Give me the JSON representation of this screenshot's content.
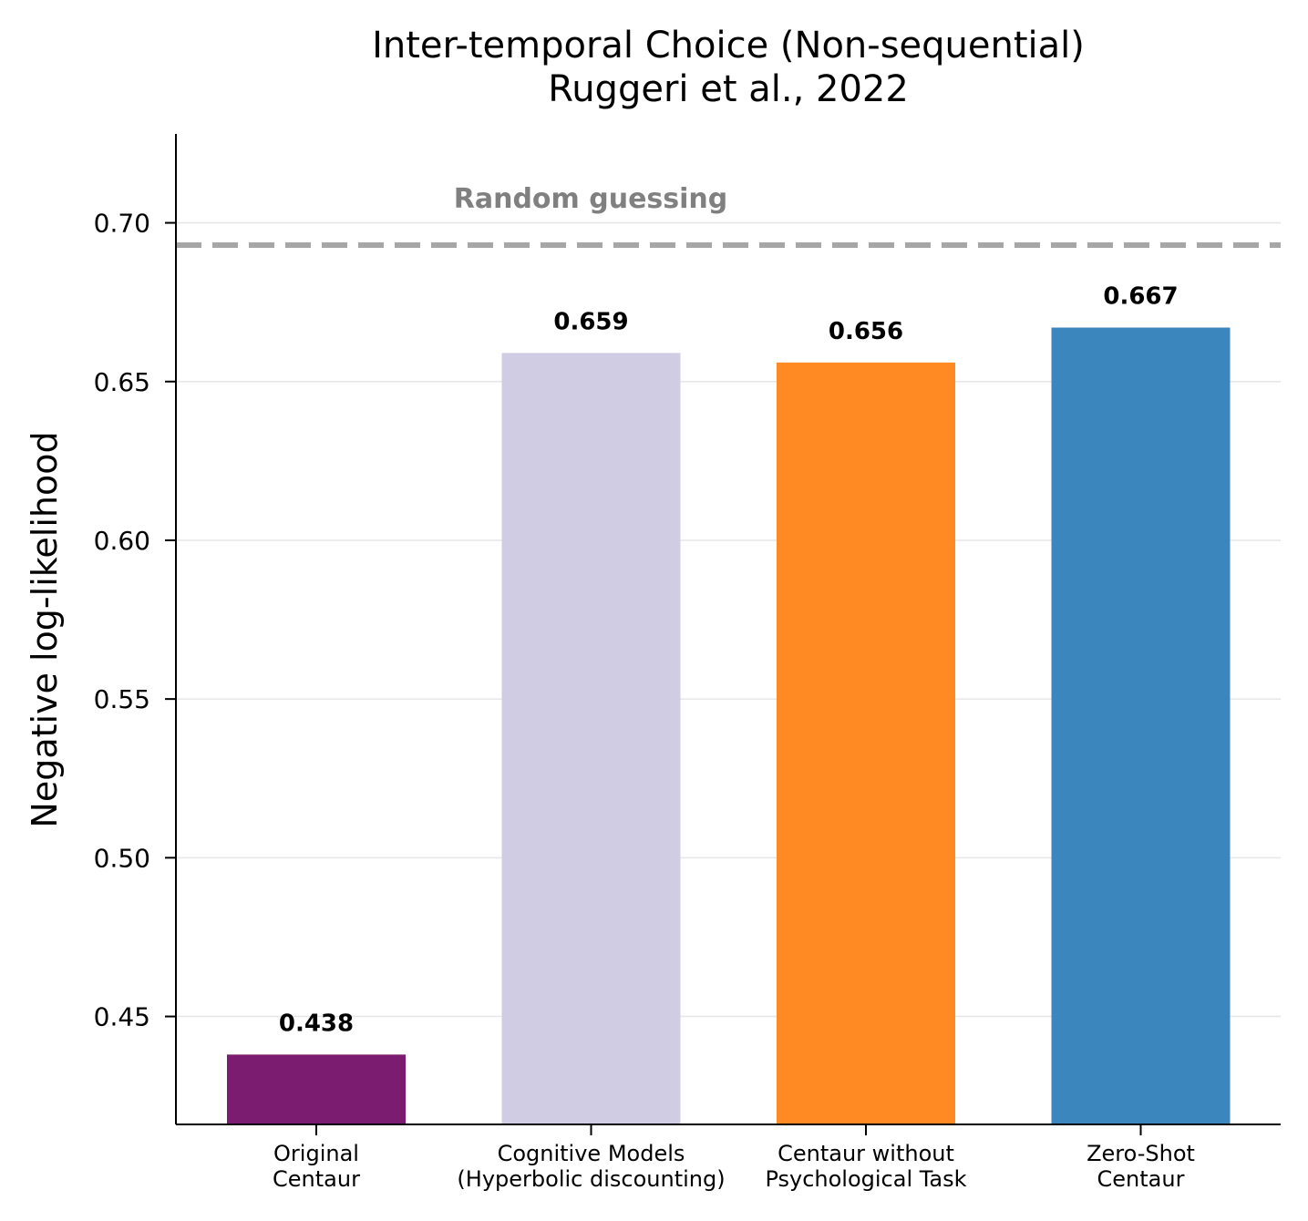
{
  "chart_data": {
    "type": "bar",
    "title_lines": [
      "Inter-temporal Choice (Non-sequential)",
      "Ruggeri et al., 2022"
    ],
    "ylabel": "Negative log-likelihood",
    "xlabel": "",
    "ylim": [
      0.416,
      0.728
    ],
    "yticks": [
      0.45,
      0.5,
      0.55,
      0.6,
      0.65,
      0.7
    ],
    "ytick_labels": [
      "0.45",
      "0.50",
      "0.55",
      "0.60",
      "0.65",
      "0.70"
    ],
    "grid": "horizontal",
    "bars": [
      {
        "category_lines": [
          "Original",
          "Centaur"
        ],
        "value": 0.438,
        "label": "0.438",
        "color": "#7b1c70"
      },
      {
        "category_lines": [
          "Cognitive Models",
          "(Hyperbolic discounting)"
        ],
        "value": 0.659,
        "label": "0.659",
        "color": "#cfcce4"
      },
      {
        "category_lines": [
          "Centaur without",
          "Psychological Task"
        ],
        "value": 0.656,
        "label": "0.656",
        "color": "#ff8a24"
      },
      {
        "category_lines": [
          "Zero-Shot",
          "Centaur"
        ],
        "value": 0.667,
        "label": "0.667",
        "color": "#3a86bd"
      }
    ],
    "reference_line": {
      "value": 0.693,
      "label": "Random guessing",
      "style": "dashed",
      "color": "#a6a6a6"
    }
  }
}
